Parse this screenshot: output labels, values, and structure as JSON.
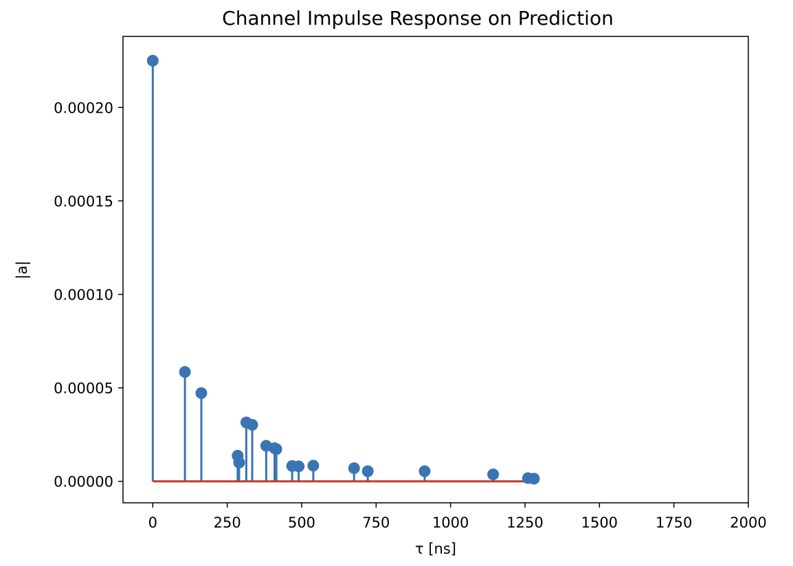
{
  "chart_data": {
    "type": "stem",
    "title": "Channel Impulse Response on Prediction",
    "xlabel": "τ [ns]",
    "ylabel": "|a|",
    "xlim": [
      -100,
      2000
    ],
    "ylim": [
      -1.15e-05,
      0.000238
    ],
    "xticks": [
      0,
      250,
      500,
      750,
      1000,
      1250,
      1500,
      1750,
      2000
    ],
    "xtick_labels": [
      "0",
      "250",
      "500",
      "750",
      "1000",
      "1250",
      "1500",
      "1750",
      "2000"
    ],
    "yticks": [
      0.0,
      5e-05,
      0.0001,
      0.00015,
      0.0002
    ],
    "ytick_labels": [
      "0.00000",
      "0.00005",
      "0.00010",
      "0.00015",
      "0.00020"
    ],
    "grid": false,
    "legend": false,
    "baseline": {
      "y": 0,
      "x_range": [
        0,
        1280
      ],
      "color": "#c0392b"
    },
    "marker_color": "#3a74b4",
    "points": [
      {
        "x": 0,
        "y": 0.000225
      },
      {
        "x": 108,
        "y": 5.85e-05
      },
      {
        "x": 163,
        "y": 4.72e-05
      },
      {
        "x": 285,
        "y": 1.37e-05
      },
      {
        "x": 290,
        "y": 1e-05
      },
      {
        "x": 314,
        "y": 3.15e-05
      },
      {
        "x": 334,
        "y": 3.02e-05
      },
      {
        "x": 381,
        "y": 1.9e-05
      },
      {
        "x": 409,
        "y": 1.77e-05
      },
      {
        "x": 415,
        "y": 1.72e-05
      },
      {
        "x": 468,
        "y": 8.2e-06
      },
      {
        "x": 490,
        "y": 8e-06
      },
      {
        "x": 539,
        "y": 8.4e-06
      },
      {
        "x": 676,
        "y": 7e-06
      },
      {
        "x": 722,
        "y": 5.4e-06
      },
      {
        "x": 913,
        "y": 5.4e-06
      },
      {
        "x": 1143,
        "y": 3.7e-06
      },
      {
        "x": 1260,
        "y": 1.7e-06
      },
      {
        "x": 1280,
        "y": 1.4e-06
      }
    ]
  }
}
